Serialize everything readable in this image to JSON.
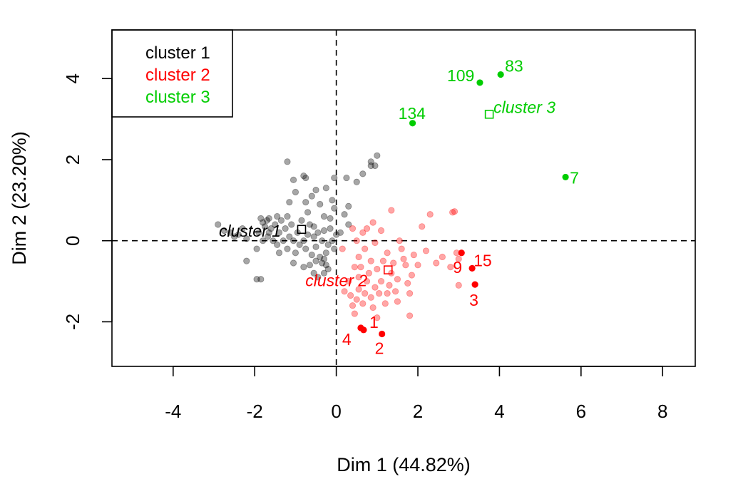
{
  "chart_data": {
    "type": "scatter",
    "xlabel": "Dim 1 (44.82%)",
    "ylabel": "Dim 2 (23.20%)",
    "xlim": [
      -5.5,
      8.8
    ],
    "ylim": [
      -3.1,
      5.2
    ],
    "xticks": [
      -4,
      -2,
      0,
      2,
      4,
      6,
      8
    ],
    "yticks": [
      -2,
      0,
      2,
      4
    ],
    "x_tick_labels": [
      "-4",
      "-2",
      "0",
      "2",
      "4",
      "6",
      "8"
    ],
    "y_tick_labels": [
      "-2",
      "0",
      "2",
      "4"
    ],
    "reference_lines": {
      "x": 0,
      "y": 0,
      "style": "dashed"
    },
    "legend": {
      "position": "top-left",
      "entries": [
        {
          "label": "cluster 1",
          "color": "#000000"
        },
        {
          "label": "cluster 2",
          "color": "#ff0000"
        },
        {
          "label": "cluster 3",
          "color": "#00cd00"
        }
      ]
    },
    "colors": {
      "cluster1": "#000000",
      "cluster2": "#ff0000",
      "cluster3": "#00cd00"
    },
    "clusters": [
      {
        "id": 1,
        "color": "#000000",
        "center": {
          "x": -0.85,
          "y": 0.28,
          "label": "cluster 1"
        },
        "points": [
          [
            -2.9,
            0.4
          ],
          [
            -2.75,
            0.25
          ],
          [
            -2.6,
            0.2
          ],
          [
            -2.5,
            0.1
          ],
          [
            -2.4,
            0.15
          ],
          [
            -2.3,
            0.3
          ],
          [
            -2.2,
            0.05
          ],
          [
            -2.2,
            -0.5
          ],
          [
            -1.95,
            -0.2
          ],
          [
            -1.9,
            0.2
          ],
          [
            -1.85,
            0.55
          ],
          [
            -1.8,
            0.45
          ],
          [
            -1.8,
            0.0
          ],
          [
            -1.75,
            0.35
          ],
          [
            -1.7,
            0.5
          ],
          [
            -1.68,
            0.1
          ],
          [
            -1.65,
            0.2
          ],
          [
            -1.6,
            0.3
          ],
          [
            -1.55,
            0.0
          ],
          [
            -1.5,
            0.4
          ],
          [
            -1.45,
            -0.1
          ],
          [
            -1.4,
            0.2
          ],
          [
            -1.35,
            0.5
          ],
          [
            -1.3,
            0.0
          ],
          [
            -1.25,
            0.3
          ],
          [
            -1.2,
            -0.2
          ],
          [
            -1.15,
            0.1
          ],
          [
            -1.1,
            0.4
          ],
          [
            -1.05,
            0.0
          ],
          [
            -1.0,
            -0.3
          ],
          [
            -0.95,
            0.2
          ],
          [
            -0.9,
            -0.1
          ],
          [
            -0.85,
            0.5
          ],
          [
            -0.8,
            0.0
          ],
          [
            -0.75,
            -0.2
          ],
          [
            -0.7,
            0.15
          ],
          [
            -0.65,
            0.4
          ],
          [
            -0.6,
            -0.35
          ],
          [
            -0.55,
            0.1
          ],
          [
            -0.5,
            -0.15
          ],
          [
            -0.45,
            0.2
          ],
          [
            -0.4,
            -0.4
          ],
          [
            -0.35,
            0.0
          ],
          [
            -0.3,
            0.25
          ],
          [
            -0.25,
            -0.3
          ],
          [
            -0.2,
            -0.1
          ],
          [
            -0.15,
            0.3
          ],
          [
            -0.1,
            0.0
          ],
          [
            -0.05,
            -0.2
          ],
          [
            0.0,
            0.15
          ],
          [
            -0.3,
            -0.45
          ],
          [
            -0.25,
            -0.6
          ],
          [
            -0.2,
            -0.7
          ],
          [
            -0.35,
            -0.55
          ],
          [
            -0.5,
            -0.5
          ],
          [
            -0.65,
            -0.6
          ],
          [
            -0.55,
            -0.8
          ],
          [
            -1.05,
            -0.55
          ],
          [
            -1.4,
            -0.3
          ],
          [
            -1.85,
            -0.95
          ],
          [
            -0.8,
            -0.65
          ],
          [
            -0.45,
            -0.9
          ],
          [
            -0.3,
            -0.8
          ],
          [
            -0.6,
            1.1
          ],
          [
            -0.4,
            0.9
          ],
          [
            -0.7,
            0.7
          ],
          [
            -1.2,
            0.6
          ],
          [
            -1.05,
            1.5
          ],
          [
            -0.8,
            1.6
          ],
          [
            -1.0,
            1.2
          ],
          [
            -1.15,
            0.95
          ],
          [
            -1.65,
            0.55
          ],
          [
            -0.25,
            1.3
          ],
          [
            -0.1,
            1.0
          ],
          [
            -0.3,
            0.6
          ],
          [
            -0.05,
            0.8
          ],
          [
            0.2,
            0.65
          ],
          [
            0.1,
            0.2
          ],
          [
            0.3,
            0.85
          ],
          [
            -0.05,
            1.55
          ],
          [
            0.25,
            1.55
          ],
          [
            0.5,
            1.45
          ],
          [
            0.65,
            1.65
          ],
          [
            0.85,
            1.95
          ],
          [
            0.95,
            1.85
          ],
          [
            1.0,
            2.1
          ],
          [
            0.85,
            1.85
          ],
          [
            -0.75,
            1.55
          ],
          [
            -1.2,
            1.95
          ],
          [
            0.3,
            0.4
          ],
          [
            -0.15,
            0.55
          ],
          [
            -0.75,
            0.95
          ],
          [
            -0.5,
            1.25
          ],
          [
            -1.45,
            0.6
          ],
          [
            -1.95,
            -0.95
          ],
          [
            -0.55,
            0.35
          ]
        ],
        "labeled_points": []
      },
      {
        "id": 2,
        "color": "#ff0000",
        "center": {
          "x": 1.27,
          "y": -0.72,
          "label": "cluster 2"
        },
        "points": [
          [
            0.3,
            -1.0
          ],
          [
            0.35,
            -1.35
          ],
          [
            0.4,
            -1.6
          ],
          [
            0.45,
            -1.8
          ],
          [
            0.5,
            -1.45
          ],
          [
            0.55,
            -1.2
          ],
          [
            0.55,
            -0.9
          ],
          [
            0.6,
            -0.65
          ],
          [
            0.65,
            -1.55
          ],
          [
            0.7,
            -1.3
          ],
          [
            0.75,
            -1.0
          ],
          [
            0.8,
            -0.8
          ],
          [
            0.85,
            -0.5
          ],
          [
            0.85,
            -1.4
          ],
          [
            0.9,
            -1.65
          ],
          [
            0.95,
            -1.15
          ],
          [
            1.0,
            -0.7
          ],
          [
            1.05,
            -1.3
          ],
          [
            1.1,
            -1.0
          ],
          [
            1.15,
            -0.5
          ],
          [
            1.2,
            -1.55
          ],
          [
            1.25,
            -0.3
          ],
          [
            1.3,
            -1.1
          ],
          [
            1.35,
            -0.8
          ],
          [
            1.4,
            -0.55
          ],
          [
            1.45,
            -1.25
          ],
          [
            1.5,
            -1.5
          ],
          [
            1.55,
            0.0
          ],
          [
            1.6,
            -0.2
          ],
          [
            1.65,
            -0.45
          ],
          [
            1.7,
            -0.6
          ],
          [
            1.75,
            -1.05
          ],
          [
            1.8,
            -1.3
          ],
          [
            1.85,
            -0.85
          ],
          [
            1.9,
            -0.35
          ],
          [
            2.0,
            -0.6
          ],
          [
            2.1,
            0.35
          ],
          [
            2.2,
            -0.25
          ],
          [
            2.3,
            0.65
          ],
          [
            2.45,
            -0.55
          ],
          [
            2.6,
            -0.4
          ],
          [
            2.85,
            0.7
          ],
          [
            2.9,
            0.72
          ],
          [
            2.95,
            -0.3
          ],
          [
            3.0,
            -0.45
          ],
          [
            3.0,
            -1.1
          ],
          [
            2.8,
            -0.65
          ],
          [
            1.5,
            -0.95
          ],
          [
            0.4,
            0.3
          ],
          [
            0.5,
            0.0
          ],
          [
            0.65,
            0.2
          ],
          [
            0.75,
            0.3
          ],
          [
            0.9,
            0.45
          ],
          [
            0.95,
            -0.05
          ],
          [
            1.1,
            0.25
          ],
          [
            1.35,
            0.75
          ],
          [
            0.45,
            -0.65
          ],
          [
            0.55,
            -0.4
          ],
          [
            0.7,
            -0.2
          ],
          [
            0.2,
            -1.25
          ],
          [
            1.0,
            -1.9
          ],
          [
            1.8,
            -1.85
          ],
          [
            1.25,
            -1.3
          ],
          [
            0.15,
            -0.2
          ]
        ],
        "labeled_points": [
          {
            "id": "1",
            "x": 0.67,
            "y": -2.2
          },
          {
            "id": "2",
            "x": 1.12,
            "y": -2.3
          },
          {
            "id": "3",
            "x": 3.4,
            "y": -1.08
          },
          {
            "id": "4",
            "x": 0.6,
            "y": -2.15
          },
          {
            "id": "9",
            "x": 3.07,
            "y": -0.3
          },
          {
            "id": "15",
            "x": 3.33,
            "y": -0.68
          }
        ]
      },
      {
        "id": 3,
        "color": "#00cd00",
        "center": {
          "x": 3.75,
          "y": 3.12,
          "label": "cluster 3"
        },
        "points": [],
        "labeled_points": [
          {
            "id": "7",
            "x": 5.62,
            "y": 1.57
          },
          {
            "id": "83",
            "x": 4.03,
            "y": 4.1
          },
          {
            "id": "109",
            "x": 3.52,
            "y": 3.9
          },
          {
            "id": "134",
            "x": 1.87,
            "y": 2.9
          }
        ]
      }
    ]
  }
}
